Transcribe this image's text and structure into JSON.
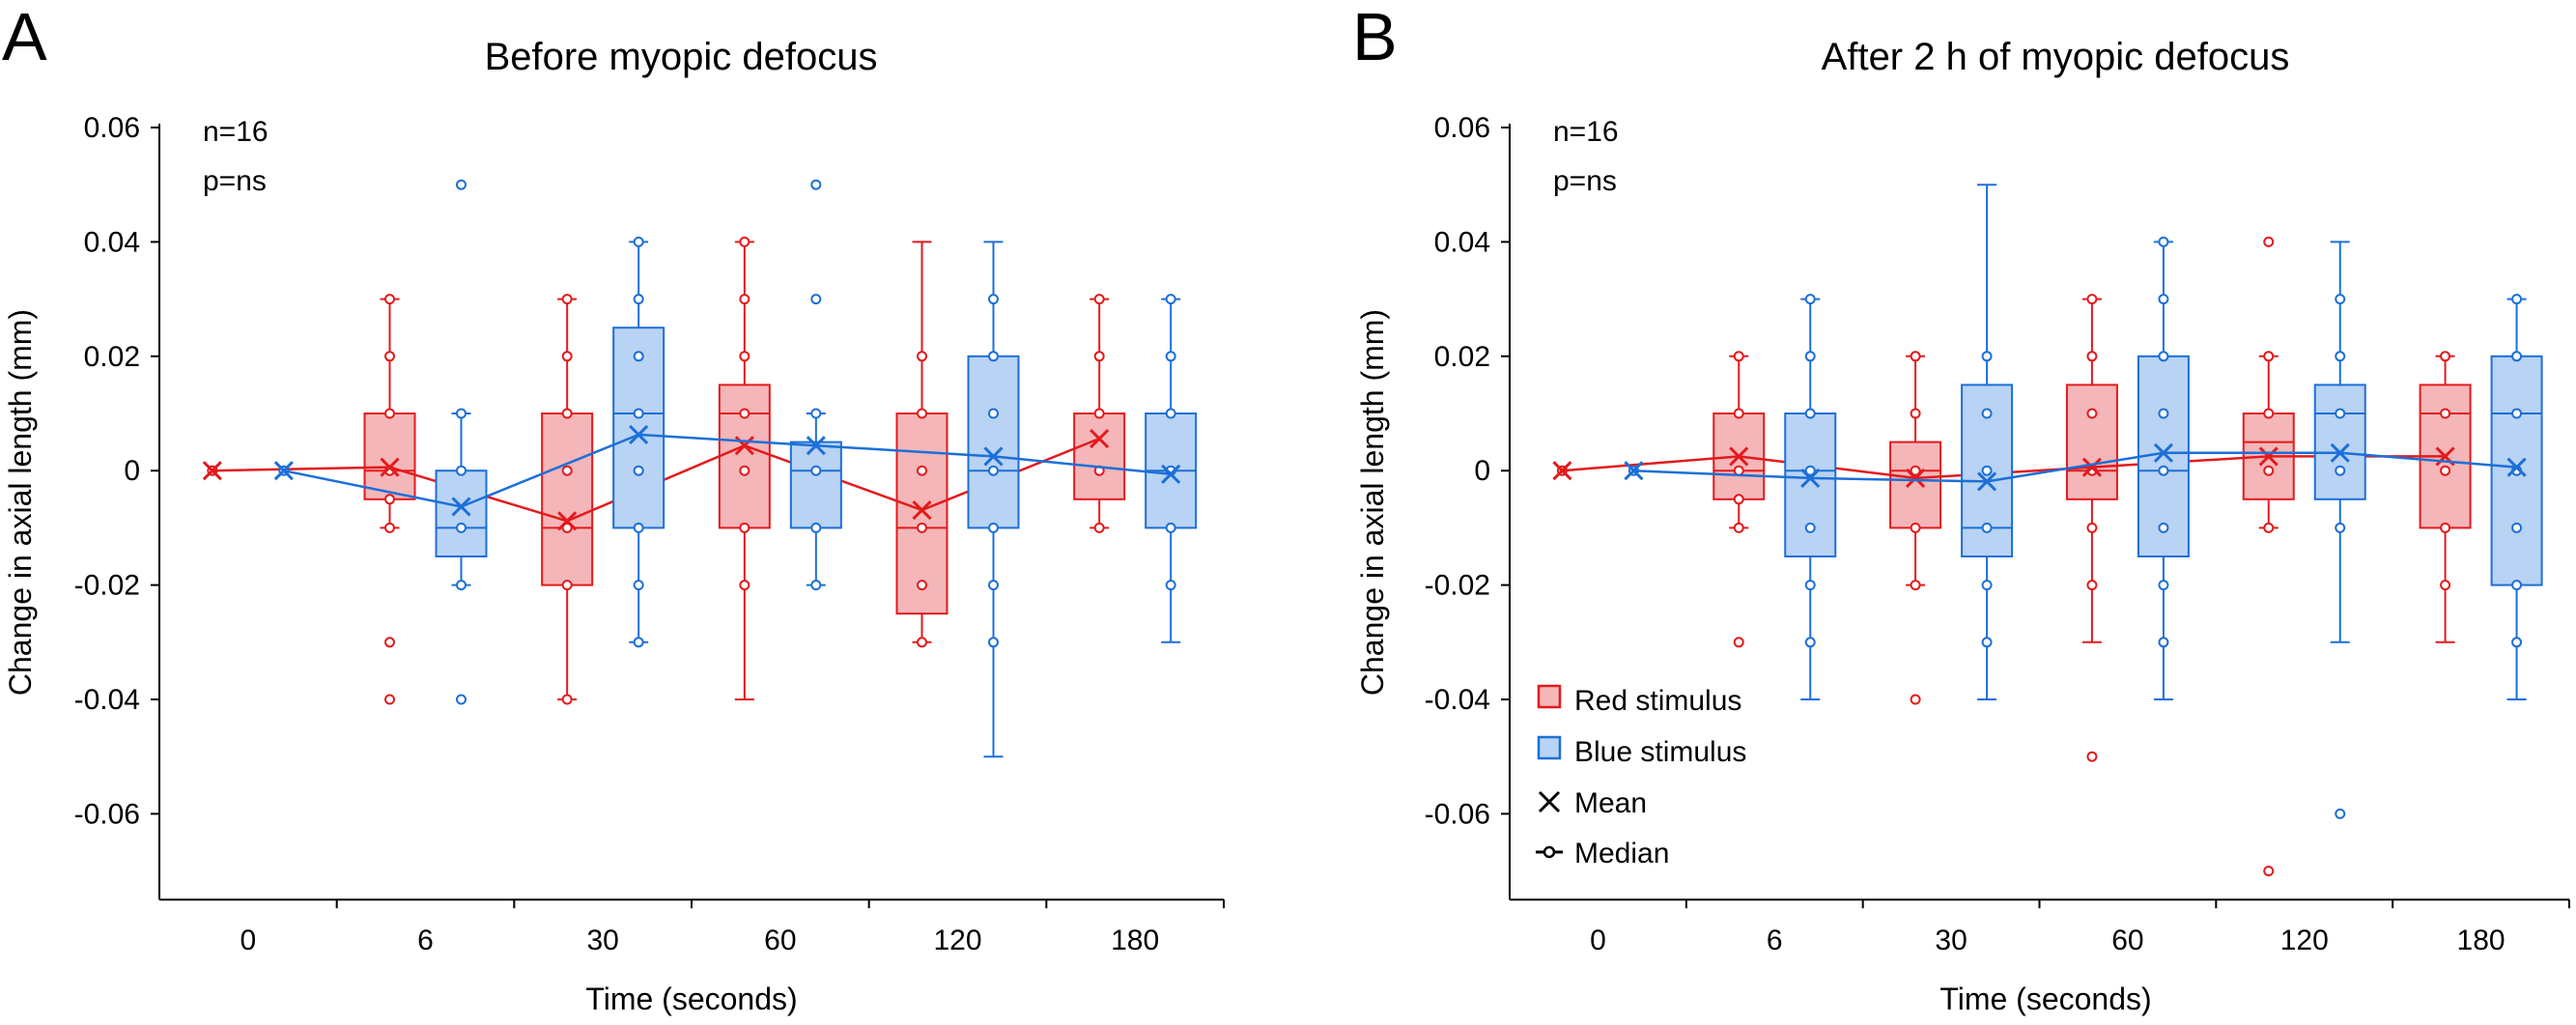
{
  "chart_data": [
    {
      "type": "box",
      "panel_letter": "A",
      "title": "Before myopic defocus",
      "xlabel": "Time (seconds)",
      "ylabel": "Change in axial length (mm)",
      "ylim": [
        -0.075,
        0.06
      ],
      "yticks": [
        0.06,
        0.04,
        0.02,
        0,
        -0.02,
        -0.04,
        -0.06
      ],
      "ytick_labels": [
        "0.06",
        "0.04",
        "0.02",
        "0",
        "-0.02",
        "-0.04",
        "-0.06"
      ],
      "categories": [
        "0",
        "6",
        "30",
        "60",
        "120",
        "180"
      ],
      "annotations": [
        "n=16",
        "p=ns"
      ],
      "series": [
        {
          "name": "Red stimulus",
          "color": "#e31a1c",
          "fill": "#f4b6b8",
          "boxes": [
            {
              "category": "0",
              "q1": 0,
              "median": 0,
              "q3": 0,
              "whisker_low": 0,
              "whisker_high": 0,
              "mean": 0,
              "points": [
                0
              ],
              "outliers": []
            },
            {
              "category": "6",
              "q1": -0.005,
              "median": 0,
              "q3": 0.01,
              "whisker_low": -0.01,
              "whisker_high": 0.03,
              "mean": 0.0006,
              "points": [
                -0.01,
                -0.005,
                0,
                0.01,
                0.02,
                0.03
              ],
              "outliers": [
                -0.03,
                -0.04
              ]
            },
            {
              "category": "30",
              "q1": -0.02,
              "median": -0.01,
              "q3": 0.01,
              "whisker_low": -0.04,
              "whisker_high": 0.03,
              "mean": -0.0088,
              "points": [
                -0.04,
                -0.02,
                -0.01,
                0,
                0.01,
                0.02,
                0.03
              ],
              "outliers": []
            },
            {
              "category": "60",
              "q1": -0.01,
              "median": 0.01,
              "q3": 0.015,
              "whisker_low": -0.04,
              "whisker_high": 0.04,
              "mean": 0.0044,
              "points": [
                -0.02,
                -0.01,
                0,
                0.01,
                0.02,
                0.03,
                0.04
              ],
              "outliers": []
            },
            {
              "category": "120",
              "q1": -0.025,
              "median": -0.01,
              "q3": 0.01,
              "whisker_low": -0.03,
              "whisker_high": 0.04,
              "mean": -0.0069,
              "points": [
                -0.03,
                -0.02,
                -0.01,
                0,
                0.01,
                0.02
              ],
              "outliers": []
            },
            {
              "category": "180",
              "q1": -0.005,
              "median": 0.01,
              "q3": 0.01,
              "whisker_low": -0.01,
              "whisker_high": 0.03,
              "mean": 0.0056,
              "points": [
                -0.01,
                0,
                0.01,
                0.02,
                0.03
              ],
              "outliers": []
            }
          ]
        },
        {
          "name": "Blue stimulus",
          "color": "#1c6fd8",
          "fill": "#b8d3f3",
          "boxes": [
            {
              "category": "0",
              "q1": 0,
              "median": 0,
              "q3": 0,
              "whisker_low": 0,
              "whisker_high": 0,
              "mean": 0,
              "points": [
                0
              ],
              "outliers": []
            },
            {
              "category": "6",
              "q1": -0.015,
              "median": -0.01,
              "q3": 0,
              "whisker_low": -0.02,
              "whisker_high": 0.01,
              "mean": -0.0063,
              "points": [
                -0.02,
                -0.01,
                0,
                0.01
              ],
              "outliers": [
                0.05,
                -0.04
              ]
            },
            {
              "category": "30",
              "q1": -0.01,
              "median": 0.01,
              "q3": 0.025,
              "whisker_low": -0.03,
              "whisker_high": 0.04,
              "mean": 0.0063,
              "points": [
                -0.03,
                -0.02,
                -0.01,
                0,
                0.01,
                0.02,
                0.03,
                0.04
              ],
              "outliers": []
            },
            {
              "category": "60",
              "q1": -0.01,
              "median": 0,
              "q3": 0.005,
              "whisker_low": -0.02,
              "whisker_high": 0.01,
              "mean": 0.0044,
              "points": [
                -0.02,
                -0.01,
                0,
                0.01
              ],
              "outliers": [
                0.05,
                0.03
              ]
            },
            {
              "category": "120",
              "q1": -0.01,
              "median": 0,
              "q3": 0.02,
              "whisker_low": -0.05,
              "whisker_high": 0.04,
              "mean": 0.0025,
              "points": [
                -0.03,
                -0.02,
                -0.01,
                0,
                0.01,
                0.02,
                0.03
              ],
              "outliers": []
            },
            {
              "category": "180",
              "q1": -0.01,
              "median": 0,
              "q3": 0.01,
              "whisker_low": -0.03,
              "whisker_high": 0.03,
              "mean": -0.0006,
              "points": [
                -0.02,
                -0.01,
                0,
                0.01,
                0.02,
                0.03
              ],
              "outliers": []
            }
          ]
        }
      ]
    },
    {
      "type": "box",
      "panel_letter": "B",
      "title": "After 2 h of myopic defocus",
      "xlabel": "Time (seconds)",
      "ylabel": "Change in axial length (mm)",
      "ylim": [
        -0.075,
        0.06
      ],
      "yticks": [
        0.06,
        0.04,
        0.02,
        0,
        -0.02,
        -0.04,
        -0.06
      ],
      "ytick_labels": [
        "0.06",
        "0.04",
        "0.02",
        "0",
        "-0.02",
        "-0.04",
        "-0.06"
      ],
      "categories": [
        "0",
        "6",
        "30",
        "60",
        "120",
        "180"
      ],
      "annotations": [
        "n=16",
        "p=ns"
      ],
      "legend": {
        "position": "lower-left",
        "entries": [
          {
            "label": "Red stimulus",
            "marker": "red-box"
          },
          {
            "label": "Blue stimulus",
            "marker": "blue-box"
          },
          {
            "label": "Mean",
            "marker": "x"
          },
          {
            "label": "Median",
            "marker": "line-dot"
          }
        ]
      },
      "series": [
        {
          "name": "Red stimulus",
          "color": "#e31a1c",
          "fill": "#f4b6b8",
          "boxes": [
            {
              "category": "0",
              "q1": 0,
              "median": 0,
              "q3": 0,
              "whisker_low": 0,
              "whisker_high": 0,
              "mean": 0,
              "points": [
                0
              ],
              "outliers": []
            },
            {
              "category": "6",
              "q1": -0.005,
              "median": 0,
              "q3": 0.01,
              "whisker_low": -0.01,
              "whisker_high": 0.02,
              "mean": 0.0025,
              "points": [
                -0.01,
                -0.005,
                0,
                0.01,
                0.02
              ],
              "outliers": [
                -0.03
              ]
            },
            {
              "category": "30",
              "q1": -0.01,
              "median": 0,
              "q3": 0.005,
              "whisker_low": -0.02,
              "whisker_high": 0.02,
              "mean": -0.0013,
              "points": [
                -0.02,
                -0.01,
                0,
                0.01,
                0.02
              ],
              "outliers": [
                -0.04
              ]
            },
            {
              "category": "60",
              "q1": -0.005,
              "median": 0,
              "q3": 0.015,
              "whisker_low": -0.03,
              "whisker_high": 0.03,
              "mean": 0.0006,
              "points": [
                -0.02,
                -0.01,
                0,
                0.01,
                0.02,
                0.03
              ],
              "outliers": [
                -0.05
              ]
            },
            {
              "category": "120",
              "q1": -0.005,
              "median": 0.005,
              "q3": 0.01,
              "whisker_low": -0.01,
              "whisker_high": 0.02,
              "mean": 0.0025,
              "points": [
                -0.01,
                0,
                0.01,
                0.02
              ],
              "outliers": [
                0.04,
                -0.07
              ]
            },
            {
              "category": "180",
              "q1": -0.01,
              "median": 0.01,
              "q3": 0.015,
              "whisker_low": -0.03,
              "whisker_high": 0.02,
              "mean": 0.0025,
              "points": [
                -0.02,
                -0.01,
                0,
                0.01,
                0.02
              ],
              "outliers": []
            }
          ]
        },
        {
          "name": "Blue stimulus",
          "color": "#1c6fd8",
          "fill": "#b8d3f3",
          "boxes": [
            {
              "category": "0",
              "q1": 0,
              "median": 0,
              "q3": 0,
              "whisker_low": 0,
              "whisker_high": 0,
              "mean": 0,
              "points": [
                0
              ],
              "outliers": []
            },
            {
              "category": "6",
              "q1": -0.015,
              "median": 0,
              "q3": 0.01,
              "whisker_low": -0.04,
              "whisker_high": 0.03,
              "mean": -0.0013,
              "points": [
                -0.03,
                -0.02,
                -0.01,
                0,
                0.01,
                0.02,
                0.03
              ],
              "outliers": []
            },
            {
              "category": "30",
              "q1": -0.015,
              "median": -0.01,
              "q3": 0.015,
              "whisker_low": -0.04,
              "whisker_high": 0.05,
              "mean": -0.0019,
              "points": [
                -0.03,
                -0.02,
                -0.01,
                0,
                0.01,
                0.02
              ],
              "outliers": []
            },
            {
              "category": "60",
              "q1": -0.015,
              "median": 0,
              "q3": 0.02,
              "whisker_low": -0.04,
              "whisker_high": 0.04,
              "mean": 0.0031,
              "points": [
                -0.03,
                -0.02,
                -0.01,
                0,
                0.01,
                0.02,
                0.03,
                0.04
              ],
              "outliers": []
            },
            {
              "category": "120",
              "q1": -0.005,
              "median": 0.01,
              "q3": 0.015,
              "whisker_low": -0.03,
              "whisker_high": 0.04,
              "mean": 0.0031,
              "points": [
                -0.01,
                0,
                0.01,
                0.02,
                0.03
              ],
              "outliers": [
                -0.06
              ]
            },
            {
              "category": "180",
              "q1": -0.02,
              "median": 0.01,
              "q3": 0.02,
              "whisker_low": -0.04,
              "whisker_high": 0.03,
              "mean": 0.0006,
              "points": [
                -0.03,
                -0.02,
                -0.01,
                0,
                0.01,
                0.02,
                0.03
              ],
              "outliers": []
            }
          ]
        }
      ]
    }
  ]
}
